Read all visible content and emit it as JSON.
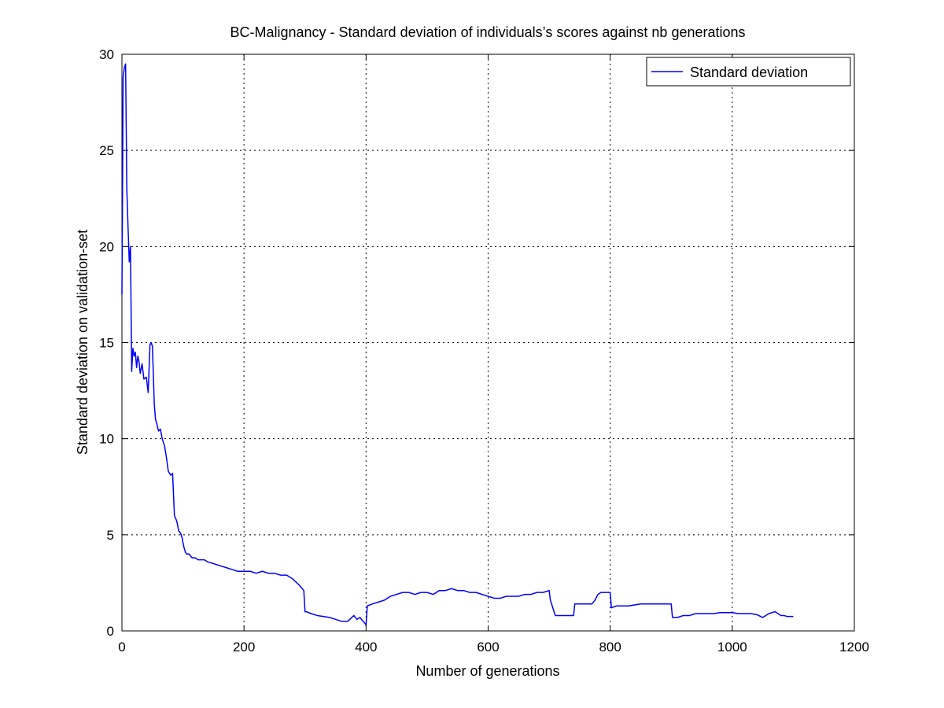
{
  "chart_data": {
    "type": "line",
    "title": "BC-Malignancy - Standard deviation of individuals’s scores against nb generations",
    "xlabel": "Number of generations",
    "ylabel": "Standard deviation on validation-set",
    "xlim": [
      0,
      1200
    ],
    "ylim": [
      0,
      30
    ],
    "xticks": [
      0,
      200,
      400,
      600,
      800,
      1000,
      1200
    ],
    "yticks": [
      0,
      5,
      10,
      15,
      20,
      25,
      30
    ],
    "xtick_labels": [
      "0",
      "200",
      "400",
      "600",
      "800",
      "1000",
      "1200"
    ],
    "ytick_labels": [
      "0",
      "5",
      "10",
      "15",
      "20",
      "25",
      "30"
    ],
    "grid": true,
    "grid_style": "dotted",
    "legend": {
      "position": "top-right",
      "entries": [
        "Standard deviation"
      ]
    },
    "series": [
      {
        "name": "Standard deviation",
        "color": "#0000ff",
        "x": [
          0,
          2,
          4,
          6,
          8,
          10,
          12,
          14,
          16,
          18,
          20,
          22,
          24,
          26,
          28,
          30,
          33,
          36,
          40,
          43,
          46,
          48,
          50,
          53,
          55,
          57,
          60,
          63,
          66,
          70,
          73,
          76,
          80,
          83,
          86,
          90,
          93,
          96,
          99,
          100,
          102,
          104,
          106,
          110,
          115,
          120,
          125,
          130,
          135,
          140,
          150,
          160,
          170,
          180,
          190,
          200,
          210,
          220,
          230,
          240,
          250,
          260,
          270,
          280,
          290,
          298,
          300,
          302,
          310,
          320,
          330,
          340,
          350,
          360,
          370,
          380,
          385,
          390,
          395,
          398,
          400,
          402,
          410,
          420,
          430,
          440,
          450,
          460,
          470,
          480,
          490,
          500,
          510,
          520,
          530,
          540,
          550,
          560,
          570,
          580,
          590,
          600,
          610,
          620,
          630,
          640,
          650,
          660,
          670,
          680,
          690,
          700,
          702,
          705,
          710,
          720,
          730,
          740,
          742,
          745,
          760,
          770,
          775,
          780,
          785,
          790,
          800,
          802,
          810,
          820,
          830,
          840,
          850,
          860,
          870,
          880,
          890,
          900,
          902,
          910,
          920,
          930,
          940,
          950,
          960,
          970,
          980,
          990,
          1000,
          1010,
          1020,
          1030,
          1040,
          1050,
          1060,
          1070,
          1075,
          1080,
          1085,
          1090,
          1100
        ],
        "values": [
          17.5,
          28.8,
          29.3,
          29.5,
          23.0,
          21.0,
          19.2,
          20.0,
          13.5,
          14.7,
          14.3,
          14.5,
          13.7,
          14.3,
          14.0,
          13.4,
          13.9,
          13.1,
          13.2,
          12.4,
          14.9,
          15.0,
          14.8,
          11.8,
          11.0,
          10.8,
          10.4,
          10.5,
          10.0,
          9.6,
          9.0,
          8.3,
          8.1,
          8.2,
          6.0,
          5.7,
          5.2,
          5.1,
          4.8,
          4.6,
          4.3,
          4.1,
          4.0,
          4.0,
          3.8,
          3.8,
          3.7,
          3.7,
          3.7,
          3.6,
          3.5,
          3.4,
          3.3,
          3.2,
          3.1,
          3.1,
          3.1,
          3.0,
          3.1,
          3.0,
          3.0,
          2.9,
          2.9,
          2.7,
          2.4,
          2.1,
          1.0,
          1.0,
          0.9,
          0.8,
          0.75,
          0.7,
          0.6,
          0.5,
          0.5,
          0.8,
          0.6,
          0.7,
          0.5,
          0.4,
          0.3,
          1.3,
          1.4,
          1.5,
          1.6,
          1.8,
          1.9,
          2.0,
          2.0,
          1.9,
          2.0,
          2.0,
          1.9,
          2.1,
          2.1,
          2.2,
          2.1,
          2.1,
          2.0,
          2.0,
          1.9,
          1.8,
          1.7,
          1.7,
          1.8,
          1.8,
          1.8,
          1.9,
          1.9,
          2.0,
          2.0,
          2.1,
          1.6,
          1.3,
          0.8,
          0.8,
          0.8,
          0.8,
          1.4,
          1.4,
          1.4,
          1.4,
          1.6,
          1.9,
          2.0,
          2.0,
          2.0,
          1.2,
          1.3,
          1.3,
          1.3,
          1.35,
          1.4,
          1.4,
          1.4,
          1.4,
          1.4,
          1.4,
          0.7,
          0.7,
          0.8,
          0.8,
          0.9,
          0.9,
          0.9,
          0.9,
          0.95,
          0.95,
          0.95,
          0.9,
          0.9,
          0.9,
          0.85,
          0.7,
          0.9,
          1.0,
          0.9,
          0.8,
          0.8,
          0.75,
          0.75
        ]
      }
    ]
  }
}
